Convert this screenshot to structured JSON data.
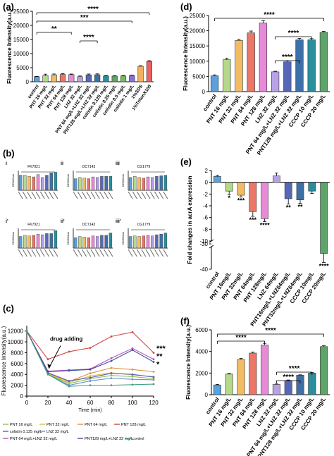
{
  "colors": {
    "control": "#5aa0dc",
    "pnt": [
      "#b5d98a",
      "#f3bb63",
      "#ec7667",
      "#e88ad8"
    ],
    "lnz": "#b7a2e6",
    "combo": [
      "#5767b8",
      "#3e6fa6",
      "#2a8e9e",
      "#5fa46a"
    ],
    "sds": "#f0b060",
    "triton": "#f06060",
    "purple": "#8a6fd8",
    "green_low": "#6fbf5c"
  },
  "chart_data": [
    {
      "panel": "(a)",
      "type": "bar",
      "ylabel": "Fluorescence Intensity(a.u.)",
      "ylim": [
        0,
        25000
      ],
      "yticks": [
        "0",
        "5000",
        "10000",
        "15000",
        "20000",
        "25000"
      ],
      "categories": [
        "control",
        "PNT 16 mg/L",
        "PNT 32 mg/L",
        "PNT 64 mg/L",
        "PNT 128 mg/L",
        "LNZ 32 mg/L",
        "PNT 64 mg/L+LNZ 32 mg/L",
        "PNT128 mg/L+LNZ 32 mg/L",
        "colistin 0.125 mg/L",
        "colistin 0.25 mg/L",
        "colistin 0.5 mg/L",
        "colistin 1 mg/L",
        "1%SDS",
        "1%TritonX100"
      ],
      "values": [
        1800,
        2200,
        2450,
        2600,
        2550,
        1800,
        2450,
        2500,
        2050,
        2000,
        2050,
        2200,
        5500,
        7200
      ],
      "errors": [
        100,
        500,
        300,
        300,
        200,
        250,
        300,
        300,
        150,
        150,
        200,
        150,
        200,
        300
      ],
      "significance": [
        "****",
        "***",
        "**",
        "****"
      ]
    },
    {
      "panel": "(b)",
      "type": "bar",
      "ylabel": "OD600nm",
      "subpanels": [
        {
          "id": "i",
          "title": "FK7921",
          "values": [
            1.3,
            1.3,
            1.2,
            1.15,
            1.35,
            1.1,
            1.3,
            1.5,
            1.55
          ]
        },
        {
          "id": "ii",
          "title": "DC7143",
          "values": [
            1.0,
            1.1,
            1.05,
            1.0,
            1.15,
            1.1,
            1.2,
            1.2,
            1.2
          ]
        },
        {
          "id": "iii",
          "title": "CG1779",
          "values": [
            1.1,
            1.2,
            1.1,
            1.05,
            1.15,
            1.1,
            1.2,
            1.25,
            1.3
          ]
        },
        {
          "id": "i'",
          "title": "FK7921",
          "values": [
            1.0,
            1.1,
            1.05,
            1.1,
            1.2,
            1.15,
            1.25,
            1.25,
            1.5
          ]
        },
        {
          "id": "ii'",
          "title": "DC7143",
          "values": [
            0.9,
            1.0,
            0.95,
            0.9,
            1.05,
            1.0,
            1.1,
            1.1,
            1.3
          ]
        },
        {
          "id": "iii'",
          "title": "CG1779",
          "values": [
            1.0,
            1.05,
            1.0,
            1.05,
            1.1,
            1.05,
            1.15,
            1.2,
            1.3
          ]
        }
      ]
    },
    {
      "panel": "(c)",
      "type": "line",
      "ylabel": "Fluorescence Intensity(a.u.)",
      "xlabel": "Time (min)",
      "x": [
        0,
        20,
        40,
        60,
        80,
        100,
        120
      ],
      "xticks": [
        "0",
        "20",
        "40",
        "60",
        "80",
        "100",
        "120"
      ],
      "yticks": [
        "0",
        "2000",
        "4000",
        "6000",
        "8000",
        "10000",
        "12000"
      ],
      "ylim": [
        0,
        13000
      ],
      "annotation": "drug adding",
      "significance": [
        "***",
        "**",
        "*"
      ],
      "series": [
        {
          "name": "PNT 16 mg/L",
          "color": "#8fbf5a",
          "values": [
            12000,
            4000,
            2300,
            3200,
            3800,
            3600,
            3200
          ]
        },
        {
          "name": "PNT 32 mg/L",
          "color": "#d4c04a",
          "values": [
            12000,
            4100,
            2500,
            3700,
            4300,
            3900,
            3600
          ]
        },
        {
          "name": "PNT 64 mg/L",
          "color": "#e09040",
          "values": [
            12000,
            4200,
            2700,
            4200,
            5200,
            4900,
            4500
          ]
        },
        {
          "name": "PNT 128 mg/L",
          "color": "#d04848",
          "values": [
            12000,
            6800,
            8200,
            8900,
            11000,
            11800,
            8000
          ]
        },
        {
          "name": "colistin 0.125 mg/L",
          "color": "#5b5fc0",
          "values": [
            12000,
            4300,
            2800,
            3400,
            4200,
            4000,
            3500
          ]
        },
        {
          "name": "LNZ 32 mg/L",
          "color": "#6a8fd0",
          "values": [
            12000,
            4000,
            2000,
            2800,
            3300,
            3100,
            3000
          ]
        },
        {
          "name": "PNT 64 mg/L+LNZ 32 mg/L",
          "color": "#c050c0",
          "values": [
            12000,
            4600,
            4800,
            5000,
            7000,
            8800,
            6800
          ]
        },
        {
          "name": "PNT128 mg/L+LNZ 32 mg/L",
          "color": "#4050a0",
          "values": [
            12000,
            4500,
            4700,
            4900,
            6500,
            8500,
            6300
          ]
        },
        {
          "name": "control",
          "color": "#40a080",
          "values": [
            12000,
            4000,
            1800,
            2000,
            2000,
            2100,
            2200
          ]
        }
      ]
    },
    {
      "panel": "(d)",
      "type": "bar",
      "ylabel": "Fluorescence Intensity(a.u.)",
      "ylim": [
        0,
        25000
      ],
      "yticks": [
        "0",
        "5000",
        "10000",
        "15000",
        "20000",
        "25000"
      ],
      "categories": [
        "control",
        "PNT 16 mg/L",
        "PNT 32 mg/L",
        "PNT 64 mg/L",
        "PNT 128 mg/L",
        "LNZ 32 mg/L",
        "PNT 64 mg/L+LNZ 32 mg/L",
        "PNT128 mg/L+LNZ 32 mg/L",
        "CCCP 10 mg/L",
        "CCCP 20 mg/L"
      ],
      "values": [
        5200,
        10500,
        16800,
        19300,
        22500,
        6500,
        9800,
        17000,
        17000,
        19500
      ],
      "errors": [
        300,
        500,
        400,
        600,
        800,
        200,
        400,
        500,
        400,
        300
      ],
      "significance": [
        "****",
        "****",
        "****"
      ]
    },
    {
      "panel": "(e)",
      "type": "bar",
      "ylabel": "Fold changes in acrA expression",
      "ylim": [
        -40,
        2
      ],
      "yticks": [
        "2",
        "0",
        "-2",
        "-4",
        "-6",
        "-8",
        "-10",
        "-30",
        "-40"
      ],
      "categories": [
        "control",
        "PNT 16mg/L",
        "PNT 32mg/L",
        "PNT 64mg/L",
        "PNT 128mg/L",
        "LNZ 64mg/L",
        "PNT16mg/L+LNZ64mg/L",
        "PNT32mg/L+LNZ64mg/L",
        "CCCP 10mg/L",
        "CCCP 20mg/L"
      ],
      "values": [
        1.0,
        -1.5,
        -2.2,
        -5.0,
        -6.2,
        1.1,
        -2.8,
        -3.0,
        -1.5,
        -33
      ],
      "errors": [
        0.2,
        0.6,
        0.3,
        0.8,
        0.5,
        0.5,
        0.9,
        0.6,
        0.4,
        4
      ],
      "significance": [
        "",
        "*",
        "***",
        "***",
        "****",
        "",
        "**",
        "**",
        "",
        "****"
      ]
    },
    {
      "panel": "(f)",
      "type": "bar",
      "ylabel": "Fluorescence Intensity(a.u.)",
      "ylim": [
        0,
        6000
      ],
      "yticks": [
        "0",
        "2000",
        "4000",
        "6000"
      ],
      "categories": [
        "control",
        "PNT 16 mg/L",
        "PNT 32 mg/L",
        "PNT 64 mg/L",
        "PNT 128 mg/L",
        "LNZ 32 mg/L",
        "PNT 64 mg/L+LNZ 32 mg/L",
        "PNT128 mg/L+LNZ 32 mg/L",
        "CCCP 10 mg/L",
        "CCCP 20 mg/L"
      ],
      "values": [
        900,
        1900,
        3250,
        3850,
        4600,
        950,
        1300,
        1800,
        2000,
        4450
      ],
      "errors": [
        50,
        80,
        120,
        100,
        150,
        40,
        60,
        40,
        50,
        80
      ],
      "significance": [
        "****",
        "****",
        "****",
        "****"
      ]
    }
  ]
}
